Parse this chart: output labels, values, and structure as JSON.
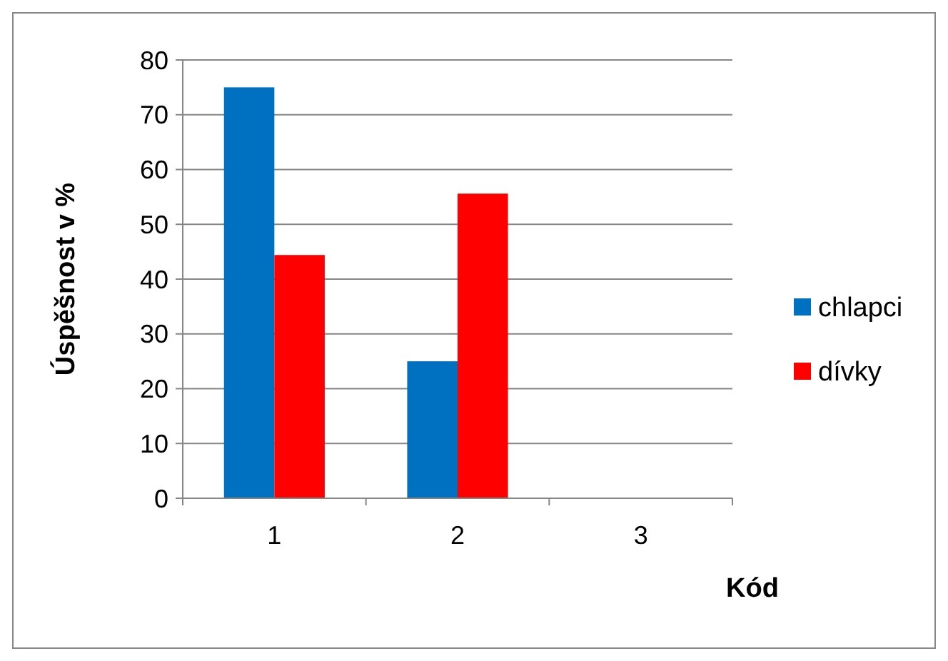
{
  "chart_data": {
    "type": "bar",
    "xlabel": "Kód",
    "ylabel": "Úspěšnost v %",
    "categories": [
      "1",
      "2",
      "3"
    ],
    "series": [
      {
        "name": "chlapci",
        "color": "#0070c0",
        "values": [
          75,
          25,
          0
        ]
      },
      {
        "name": "dívky",
        "color": "#ff0000",
        "values": [
          44.4,
          55.6,
          0
        ]
      }
    ],
    "ylim": [
      0,
      80
    ],
    "yticks": [
      0,
      10,
      20,
      30,
      40,
      50,
      60,
      70,
      80
    ],
    "grid": "y",
    "legend": "right"
  }
}
